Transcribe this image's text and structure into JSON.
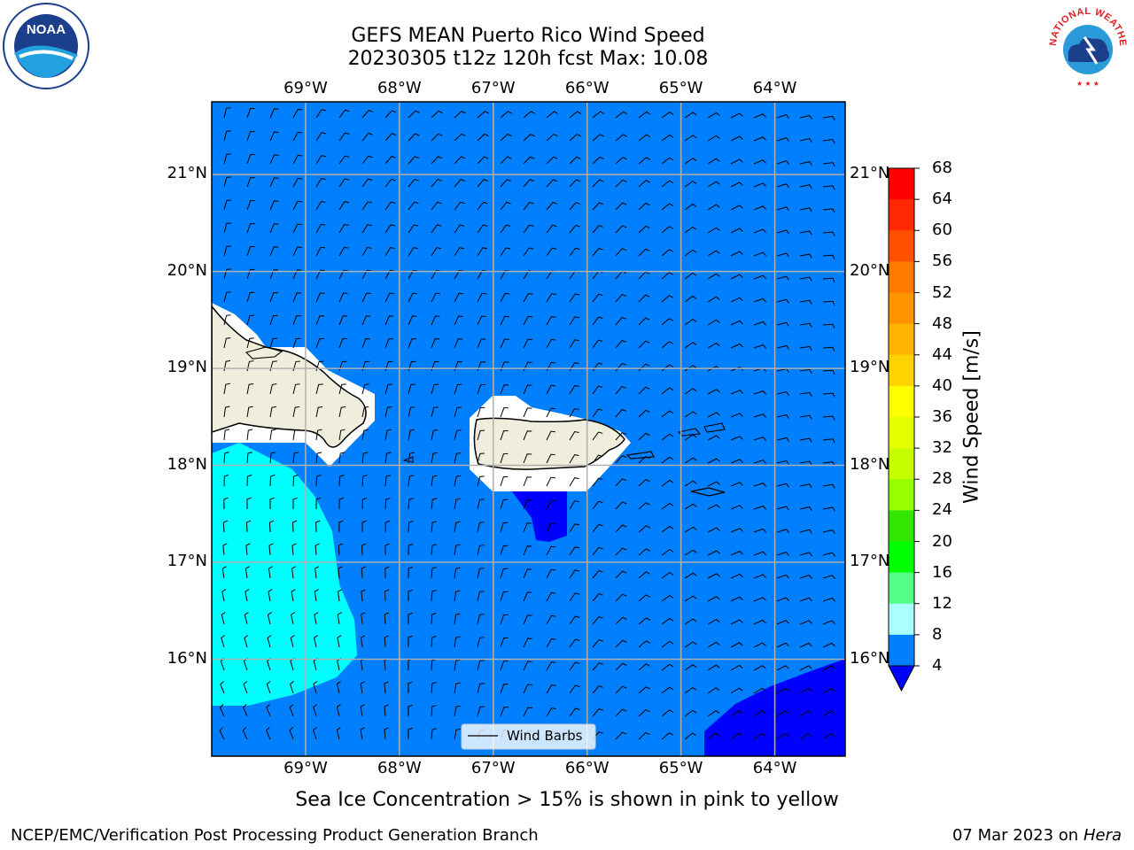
{
  "title": {
    "line1": "GEFS MEAN Puerto Rico Wind Speed",
    "line2": "20230305 t12z 120h fcst   Max: 10.08"
  },
  "map": {
    "lon_labels": [
      "69°W",
      "68°W",
      "67°W",
      "66°W",
      "65°W",
      "64°W"
    ],
    "lat_labels": [
      "21°N",
      "20°N",
      "19°N",
      "18°N",
      "17°N",
      "16°N"
    ],
    "lon_range": [
      -70.0,
      -63.25
    ],
    "lat_range": [
      15.0,
      21.75
    ],
    "legend_label": "Wind Barbs",
    "colors": {
      "land": "#efeedc",
      "ocean_4_8": "#0080ff",
      "speed_0_4": "#0000ff",
      "speed_8_12": "#00ffff",
      "gridline": "#b0b0b0"
    }
  },
  "colorbar": {
    "label": "Wind Speed [m/s]",
    "ticks": [
      "68",
      "64",
      "60",
      "56",
      "52",
      "48",
      "44",
      "40",
      "36",
      "32",
      "28",
      "24",
      "20",
      "16",
      "12",
      "8",
      "4"
    ],
    "colors": [
      "#ff0000",
      "#ff2800",
      "#ff5000",
      "#ff7800",
      "#ff9600",
      "#ffb400",
      "#ffd200",
      "#ffff00",
      "#e6ff00",
      "#c8ff00",
      "#96ff00",
      "#32e600",
      "#00ff00",
      "#55ff88",
      "#aaffff",
      "#55ffff",
      "#00ffff",
      "#0080ff"
    ],
    "extend_color": "#0000ff"
  },
  "caption": "Sea Ice Concentration > 15% is shown in pink to yellow",
  "footer": {
    "left": "NCEP/EMC/Verification Post Processing Product Generation Branch",
    "date": "07 Mar 2023 on",
    "machine": "Hera"
  },
  "logos": {
    "noaa_text": "NOAA",
    "nws_text": "NATIONAL WEATHER SERVICE"
  }
}
